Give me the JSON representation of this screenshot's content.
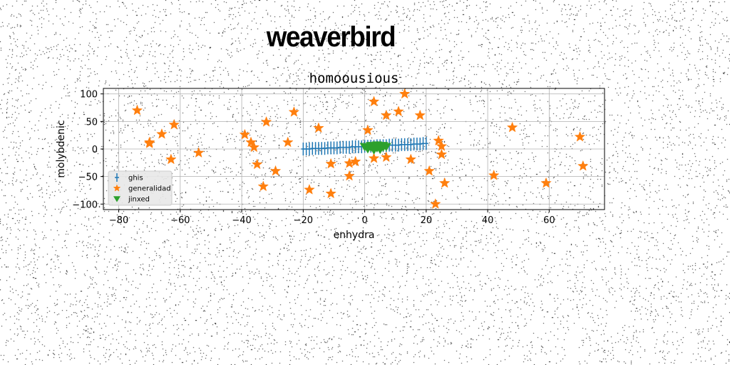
{
  "suptitle": "weaverbird",
  "chart_data": {
    "type": "scatter",
    "title": "homoousious",
    "xlabel": "enhydra",
    "ylabel": "molybdenic",
    "xlim": [
      -85,
      78
    ],
    "ylim": [
      -110,
      110
    ],
    "xticks": [
      -80,
      -60,
      -40,
      -20,
      0,
      20,
      40,
      60
    ],
    "yticks": [
      -100,
      -50,
      0,
      50,
      100
    ],
    "grid": true,
    "legend": "lower-left",
    "series": [
      {
        "name": "ghis",
        "marker": "plus",
        "color": "#1f77b4",
        "points": [
          [
            -20,
            0
          ],
          [
            -19,
            0
          ],
          [
            -18,
            0
          ],
          [
            -17,
            1
          ],
          [
            -16,
            1
          ],
          [
            -15,
            1
          ],
          [
            -14,
            1
          ],
          [
            -13,
            1
          ],
          [
            -12,
            2
          ],
          [
            -11,
            2
          ],
          [
            -10,
            2
          ],
          [
            -9,
            2
          ],
          [
            -8,
            3
          ],
          [
            -7,
            3
          ],
          [
            -6,
            3
          ],
          [
            -5,
            3
          ],
          [
            -4,
            4
          ],
          [
            -3,
            4
          ],
          [
            -2,
            4
          ],
          [
            -1,
            4
          ],
          [
            0,
            5
          ],
          [
            1,
            5
          ],
          [
            2,
            5
          ],
          [
            3,
            5
          ],
          [
            4,
            6
          ],
          [
            5,
            6
          ],
          [
            6,
            6
          ],
          [
            7,
            6
          ],
          [
            8,
            7
          ],
          [
            9,
            7
          ],
          [
            10,
            7
          ],
          [
            11,
            7
          ],
          [
            12,
            8
          ],
          [
            13,
            8
          ],
          [
            14,
            8
          ],
          [
            15,
            8
          ],
          [
            16,
            9
          ],
          [
            17,
            9
          ],
          [
            18,
            9
          ],
          [
            19,
            10
          ],
          [
            20,
            10
          ]
        ]
      },
      {
        "name": "generalidad",
        "marker": "star",
        "color": "#ff7f0e",
        "points": [
          [
            -74,
            70
          ],
          [
            -70,
            10
          ],
          [
            -70,
            12
          ],
          [
            -66,
            27
          ],
          [
            -62,
            44
          ],
          [
            -63,
            -19
          ],
          [
            -54,
            -7
          ],
          [
            -39,
            26
          ],
          [
            -37,
            12
          ],
          [
            -36,
            3
          ],
          [
            -35,
            -28
          ],
          [
            -33,
            -68
          ],
          [
            -32,
            49
          ],
          [
            -29,
            -40
          ],
          [
            -25,
            12
          ],
          [
            -23,
            67
          ],
          [
            -18,
            -74
          ],
          [
            -15,
            38
          ],
          [
            -11,
            -27
          ],
          [
            -11,
            -81
          ],
          [
            -5,
            -26
          ],
          [
            -5,
            -49
          ],
          [
            -3,
            -23
          ],
          [
            1,
            34
          ],
          [
            3,
            86
          ],
          [
            3,
            -17
          ],
          [
            7,
            61
          ],
          [
            7,
            -15
          ],
          [
            11,
            68
          ],
          [
            13,
            100
          ],
          [
            15,
            -19
          ],
          [
            18,
            61
          ],
          [
            21,
            -40
          ],
          [
            23,
            -100
          ],
          [
            24,
            15
          ],
          [
            25,
            5
          ],
          [
            25,
            -10
          ],
          [
            26,
            -62
          ],
          [
            42,
            -48
          ],
          [
            48,
            39
          ],
          [
            59,
            -62
          ],
          [
            70,
            22
          ],
          [
            71,
            -31
          ]
        ]
      },
      {
        "name": "jinxed",
        "marker": "triangle-down",
        "color": "#2ca02c",
        "points": [
          [
            0,
            4
          ],
          [
            1,
            3
          ],
          [
            2,
            3
          ],
          [
            3,
            2
          ],
          [
            4,
            2
          ],
          [
            5,
            2
          ],
          [
            6,
            3
          ],
          [
            7,
            4
          ],
          [
            1,
            0
          ],
          [
            3,
            -2
          ],
          [
            5,
            -1
          ],
          [
            2,
            6
          ],
          [
            4,
            7
          ],
          [
            6,
            6
          ],
          [
            3,
            1
          ]
        ]
      }
    ]
  }
}
